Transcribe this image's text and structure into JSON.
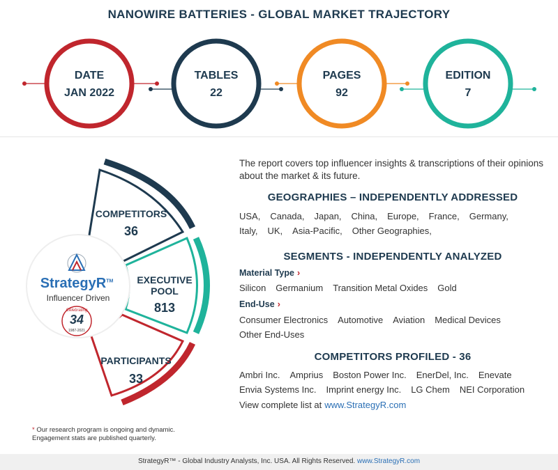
{
  "title": "NANOWIRE BATTERIES - GLOBAL MARKET TRAJECTORY",
  "stats": [
    {
      "label": "DATE",
      "value": "JAN 2022",
      "color": "#c0262d"
    },
    {
      "label": "TABLES",
      "value": "22",
      "color": "#1e3a4f"
    },
    {
      "label": "PAGES",
      "value": "92",
      "color": "#f08a24"
    },
    {
      "label": "EDITION",
      "value": "7",
      "color": "#1fb39b"
    }
  ],
  "engagement": {
    "competitors": {
      "label": "COMPETITORS",
      "value": "36"
    },
    "executive_pool": {
      "label_line1": "EXECUTIVE",
      "label_line2": "POOL",
      "value": "813"
    },
    "participants": {
      "label": "PARTICIPANTS",
      "value": "33"
    }
  },
  "logo": {
    "brand": "StrategyR",
    "tm": "TM",
    "tagline": "Influencer Driven",
    "badge_top": "Celebrating",
    "badge_number": "34",
    "badge_years": "1987-2021"
  },
  "intro": "The report covers top influencer insights & transcriptions of their opinions about the market & its future.",
  "geographies": {
    "title": "GEOGRAPHIES – INDEPENDENTLY ADDRESSED",
    "items": [
      "USA,",
      "Canada,",
      "Japan,",
      "China,",
      "Europe,",
      "France,",
      "Germany,",
      "Italy,",
      "UK,",
      "Asia-Pacific,",
      "Other Geographies,"
    ]
  },
  "segments": {
    "title": "SEGMENTS - INDEPENDENTLY ANALYZED",
    "material_type_label": "Material Type",
    "material_type": [
      "Silicon",
      "Germanium",
      "Transition Metal Oxides",
      "Gold"
    ],
    "end_use_label": "End-Use",
    "end_use": [
      "Consumer Electronics",
      "Automotive",
      "Aviation",
      "Medical Devices",
      "Other End-Uses"
    ]
  },
  "competitors": {
    "title": "COMPETITORS PROFILED - 36",
    "items": [
      "Ambri Inc.",
      "Amprius",
      "Boston Power Inc.",
      "EnerDel, Inc.",
      "Enevate",
      "Envia Systems Inc.",
      "Imprint energy Inc.",
      "LG Chem",
      "NEI Corporation"
    ],
    "view_text": "View complete list at",
    "view_link": "www.StrategyR.com"
  },
  "footnote": {
    "star": "*",
    "line1": "Our research program is ongoing and dynamic.",
    "line2": "Engagement stats are published quarterly."
  },
  "footer": {
    "text": "StrategyR™ - Global Industry Analysts, Inc. USA. All Rights Reserved.",
    "link": "www.StrategyR.com"
  }
}
